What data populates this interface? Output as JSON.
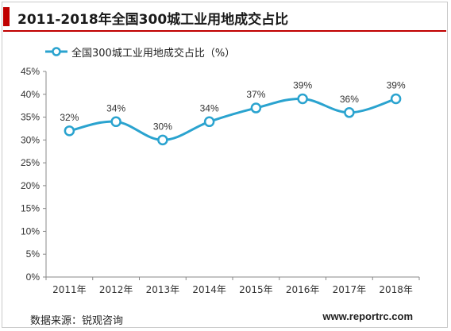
{
  "header": {
    "title": "2011-2018年全国300城工业用地成交占比"
  },
  "legend": {
    "label": "全国300城工业用地成交占比（%）"
  },
  "footer": {
    "source": "数据来源：锐观咨询",
    "website": "www.reportrc.com"
  },
  "colors": {
    "accent": "#c00000",
    "series": "#2aa3cf"
  },
  "chart_data": {
    "type": "line",
    "categories": [
      "2011年",
      "2012年",
      "2013年",
      "2014年",
      "2015年",
      "2016年",
      "2017年",
      "2018年"
    ],
    "series": [
      {
        "name": "全国300城工业用地成交占比（%）",
        "values": [
          32,
          34,
          30,
          34,
          37,
          39,
          36,
          39
        ],
        "data_labels": [
          "32%",
          "34%",
          "30%",
          "34%",
          "37%",
          "39%",
          "36%",
          "39%"
        ]
      }
    ],
    "ylim": [
      0,
      45
    ],
    "yticks": [
      "0%",
      "5%",
      "10%",
      "15%",
      "20%",
      "25%",
      "30%",
      "35%",
      "40%",
      "45%"
    ],
    "ytick_values": [
      0,
      5,
      10,
      15,
      20,
      25,
      30,
      35,
      40,
      45
    ],
    "smooth": true,
    "grid": false,
    "legend_position": "top-left"
  }
}
